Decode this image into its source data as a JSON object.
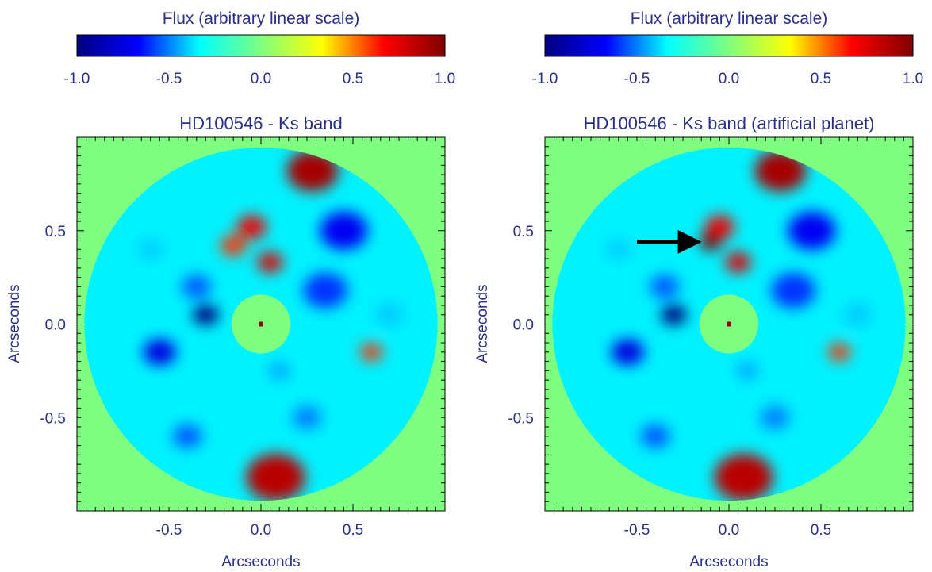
{
  "chart_data": [
    {
      "type": "heatmap",
      "title": "HD100546 - Ks band",
      "colorbar": {
        "label": "Flux (arbitrary linear scale)",
        "range": [
          -1.0,
          1.0
        ],
        "ticks": [
          "-1.0",
          "-0.5",
          "0.0",
          "0.5",
          "1.0"
        ],
        "tick_values": [
          -1.0,
          -0.5,
          0.0,
          0.5,
          1.0
        ],
        "colormap": [
          "#00007f",
          "#0000ff",
          "#00ffff",
          "#7fff7f",
          "#ffff00",
          "#ff0000",
          "#7f0000"
        ]
      },
      "xlabel": "Arcseconds",
      "ylabel": "Arcseconds",
      "xlim": [
        -1.0,
        1.0
      ],
      "ylim": [
        -1.0,
        1.0
      ],
      "x_ticks": [
        "-0.5",
        "0.0",
        "0.5"
      ],
      "x_tick_values": [
        -0.5,
        0.0,
        0.5
      ],
      "y_ticks": [
        "0.5",
        "0.0",
        "-0.5"
      ],
      "y_tick_values": [
        0.5,
        0.0,
        -0.5
      ],
      "mask": {
        "outer_radius": 0.96,
        "inner_radius": 0.16,
        "background_value": 0.0
      },
      "star_marker": {
        "x": 0.0,
        "y": 0.0,
        "color": "#8b0000"
      },
      "features": [
        {
          "x": 0.28,
          "y": 0.82,
          "value": 0.9,
          "extent": 0.14
        },
        {
          "x": 0.08,
          "y": -0.82,
          "value": 0.85,
          "extent": 0.16
        },
        {
          "x": -0.05,
          "y": 0.52,
          "value": 0.7,
          "extent": 0.08
        },
        {
          "x": 0.05,
          "y": 0.33,
          "value": 0.75,
          "extent": 0.07
        },
        {
          "x": -0.15,
          "y": 0.42,
          "value": 0.6,
          "extent": 0.07
        },
        {
          "x": 0.6,
          "y": -0.15,
          "value": 0.6,
          "extent": 0.06
        },
        {
          "x": -0.3,
          "y": 0.05,
          "value": -1.0,
          "extent": 0.07
        },
        {
          "x": -0.55,
          "y": -0.15,
          "value": -0.75,
          "extent": 0.09
        },
        {
          "x": 0.45,
          "y": 0.5,
          "value": -0.7,
          "extent": 0.13
        },
        {
          "x": 0.35,
          "y": 0.18,
          "value": -0.6,
          "extent": 0.12
        },
        {
          "x": -0.35,
          "y": 0.2,
          "value": -0.55,
          "extent": 0.08
        },
        {
          "x": 0.25,
          "y": -0.5,
          "value": -0.5,
          "extent": 0.08
        },
        {
          "x": -0.4,
          "y": -0.6,
          "value": -0.55,
          "extent": 0.08
        },
        {
          "x": -0.6,
          "y": 0.4,
          "value": -0.4,
          "extent": 0.07
        },
        {
          "x": 0.7,
          "y": 0.05,
          "value": -0.4,
          "extent": 0.08
        },
        {
          "x": 0.1,
          "y": -0.25,
          "value": -0.45,
          "extent": 0.06
        }
      ]
    },
    {
      "type": "heatmap",
      "title": "HD100546 - Ks band (artificial planet)",
      "colorbar": {
        "label": "Flux (arbitrary linear scale)",
        "range": [
          -1.0,
          1.0
        ],
        "ticks": [
          "-1.0",
          "-0.5",
          "0.0",
          "0.5",
          "1.0"
        ],
        "tick_values": [
          -1.0,
          -0.5,
          0.0,
          0.5,
          1.0
        ],
        "colormap": [
          "#00007f",
          "#0000ff",
          "#00ffff",
          "#7fff7f",
          "#ffff00",
          "#ff0000",
          "#7f0000"
        ]
      },
      "xlabel": "Arcseconds",
      "ylabel": "Arcseconds",
      "xlim": [
        -1.0,
        1.0
      ],
      "ylim": [
        -1.0,
        1.0
      ],
      "x_ticks": [
        "-0.5",
        "0.0",
        "0.5"
      ],
      "x_tick_values": [
        -0.5,
        0.0,
        0.5
      ],
      "y_ticks": [
        "0.5",
        "0.0",
        "-0.5"
      ],
      "y_tick_values": [
        0.5,
        0.0,
        -0.5
      ],
      "mask": {
        "outer_radius": 0.96,
        "inner_radius": 0.16,
        "background_value": 0.0
      },
      "star_marker": {
        "x": 0.0,
        "y": 0.0,
        "color": "#8b0000"
      },
      "planet": {
        "x": -0.1,
        "y": 0.44,
        "value": 1.0
      },
      "arrow": {
        "from": [
          -0.5,
          0.44
        ],
        "to": [
          -0.17,
          0.44
        ],
        "color": "#000000"
      },
      "features": [
        {
          "x": 0.28,
          "y": 0.82,
          "value": 0.9,
          "extent": 0.14
        },
        {
          "x": 0.08,
          "y": -0.82,
          "value": 0.85,
          "extent": 0.16
        },
        {
          "x": -0.05,
          "y": 0.52,
          "value": 0.7,
          "extent": 0.08
        },
        {
          "x": 0.05,
          "y": 0.33,
          "value": 0.75,
          "extent": 0.07
        },
        {
          "x": -0.1,
          "y": 0.44,
          "value": 1.0,
          "extent": 0.06
        },
        {
          "x": 0.6,
          "y": -0.15,
          "value": 0.6,
          "extent": 0.06
        },
        {
          "x": -0.3,
          "y": 0.05,
          "value": -1.0,
          "extent": 0.07
        },
        {
          "x": -0.55,
          "y": -0.15,
          "value": -0.75,
          "extent": 0.09
        },
        {
          "x": 0.45,
          "y": 0.5,
          "value": -0.7,
          "extent": 0.13
        },
        {
          "x": 0.35,
          "y": 0.18,
          "value": -0.6,
          "extent": 0.12
        },
        {
          "x": -0.35,
          "y": 0.2,
          "value": -0.55,
          "extent": 0.08
        },
        {
          "x": 0.25,
          "y": -0.5,
          "value": -0.5,
          "extent": 0.08
        },
        {
          "x": -0.4,
          "y": -0.6,
          "value": -0.55,
          "extent": 0.08
        },
        {
          "x": -0.6,
          "y": 0.4,
          "value": -0.4,
          "extent": 0.07
        },
        {
          "x": 0.7,
          "y": 0.05,
          "value": -0.4,
          "extent": 0.08
        },
        {
          "x": 0.1,
          "y": -0.25,
          "value": -0.45,
          "extent": 0.06
        }
      ]
    }
  ]
}
